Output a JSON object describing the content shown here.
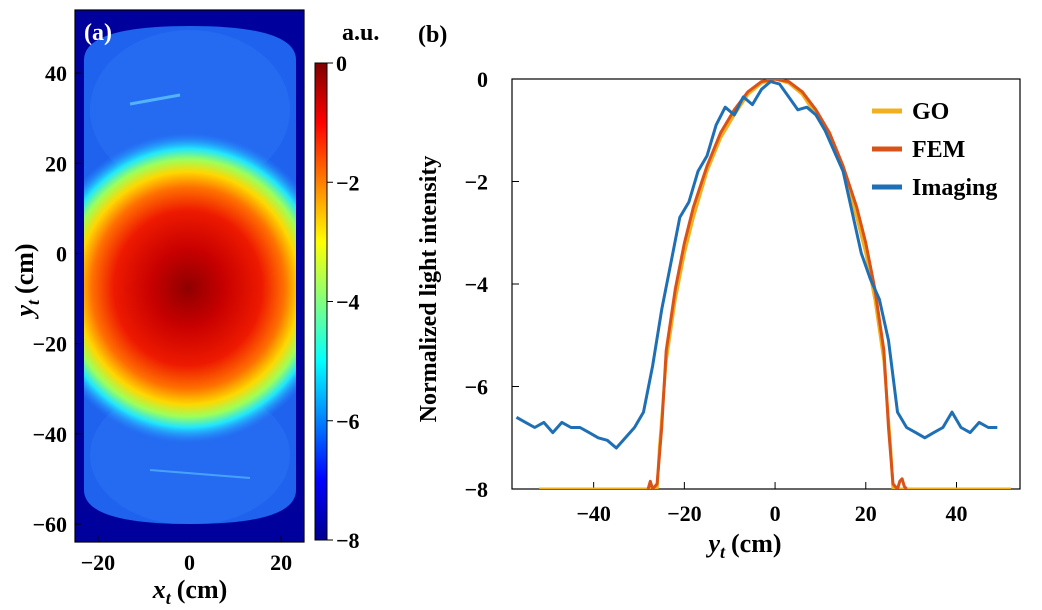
{
  "chart_data": [
    {
      "type": "heatmap",
      "panel_label": "(a)",
      "xlabel_main": "x",
      "xlabel_sub": "t",
      "xlabel_unit": "(cm)",
      "ylabel_main": "y",
      "ylabel_sub": "t",
      "ylabel_unit": "(cm)",
      "xlim": [
        -25,
        25
      ],
      "ylim": [
        -64,
        54
      ],
      "xticks": [
        -20,
        0,
        20
      ],
      "yticks": [
        40,
        20,
        0,
        -20,
        -40,
        -60
      ],
      "colorbar": {
        "title": "a.u.",
        "range": [
          -8,
          0
        ],
        "ticks": [
          0,
          -2,
          -4,
          -6,
          -8
        ],
        "colors": [
          "#00008f",
          "#0000ff",
          "#0080ff",
          "#00ffff",
          "#80ff80",
          "#ffff00",
          "#ff8000",
          "#ff0000",
          "#800000"
        ]
      },
      "peak_center": [
        -2,
        -7
      ],
      "background_level": -6.5
    },
    {
      "type": "line",
      "panel_label": "(b)",
      "xlabel_main": "y",
      "xlabel_sub": "t",
      "xlabel_unit": "(cm)",
      "ylabel": "Normalized light intensity",
      "xlim": [
        -58,
        54
      ],
      "ylim": [
        -8,
        0
      ],
      "xticks": [
        -40,
        -20,
        0,
        20,
        40
      ],
      "yticks": [
        0,
        -2,
        -4,
        -6,
        -8
      ],
      "legend_position": "top-right",
      "series": [
        {
          "name": "GO",
          "color": "#f2b01e",
          "x": [
            -52,
            -26,
            -25.5,
            -24,
            -22,
            -20,
            -18,
            -15,
            -12,
            -9,
            -6,
            -3,
            0,
            3,
            6,
            9,
            12,
            15,
            18,
            20,
            22,
            24,
            25.5,
            26,
            52
          ],
          "y": [
            -8,
            -8,
            -7.2,
            -5.5,
            -4.3,
            -3.4,
            -2.7,
            -1.8,
            -1.15,
            -0.7,
            -0.3,
            -0.08,
            0,
            -0.08,
            -0.3,
            -0.7,
            -1.15,
            -1.8,
            -2.7,
            -3.4,
            -4.3,
            -5.5,
            -7.2,
            -8,
            -8
          ]
        },
        {
          "name": "FEM",
          "color": "#d95319",
          "x": [
            -28,
            -27.5,
            -27,
            -26,
            -25,
            -24,
            -22,
            -20,
            -18,
            -15,
            -12,
            -9,
            -6,
            -3,
            0,
            3,
            6,
            9,
            12,
            15,
            18,
            20,
            22,
            24,
            25,
            26,
            27,
            27.5,
            28,
            28.5,
            29
          ],
          "y": [
            -8,
            -7.85,
            -8,
            -7.9,
            -6.8,
            -5.3,
            -4.1,
            -3.2,
            -2.5,
            -1.7,
            -1.05,
            -0.6,
            -0.25,
            -0.05,
            0,
            -0.05,
            -0.25,
            -0.6,
            -1.05,
            -1.7,
            -2.5,
            -3.2,
            -4.1,
            -5.3,
            -6.8,
            -7.9,
            -8,
            -7.85,
            -7.8,
            -7.95,
            -8
          ]
        },
        {
          "name": "Imaging",
          "color": "#1f6fb5",
          "x": [
            -57,
            -55,
            -53,
            -51,
            -49,
            -47,
            -45,
            -43,
            -41,
            -39,
            -37,
            -35,
            -33,
            -31,
            -29,
            -27,
            -25,
            -23,
            -21,
            -19,
            -17,
            -15,
            -13,
            -11,
            -9,
            -7,
            -5,
            -3,
            -1,
            1,
            3,
            5,
            7,
            9,
            11,
            13,
            15,
            17,
            19,
            21,
            23,
            25,
            27,
            29,
            31,
            33,
            35,
            37,
            39,
            41,
            43,
            45,
            47,
            49
          ],
          "y": [
            -6.6,
            -6.7,
            -6.8,
            -6.7,
            -6.9,
            -6.7,
            -6.8,
            -6.8,
            -6.9,
            -7.0,
            -7.05,
            -7.2,
            -7.0,
            -6.8,
            -6.5,
            -5.6,
            -4.5,
            -3.6,
            -2.7,
            -2.4,
            -1.8,
            -1.5,
            -0.9,
            -0.55,
            -0.7,
            -0.35,
            -0.5,
            -0.2,
            -0.05,
            -0.1,
            -0.35,
            -0.6,
            -0.55,
            -0.7,
            -1.0,
            -1.4,
            -1.8,
            -2.6,
            -3.4,
            -3.9,
            -4.3,
            -5.1,
            -6.5,
            -6.8,
            -6.9,
            -7.0,
            -6.9,
            -6.8,
            -6.5,
            -6.8,
            -6.9,
            -6.7,
            -6.8,
            -6.8
          ]
        }
      ]
    }
  ]
}
